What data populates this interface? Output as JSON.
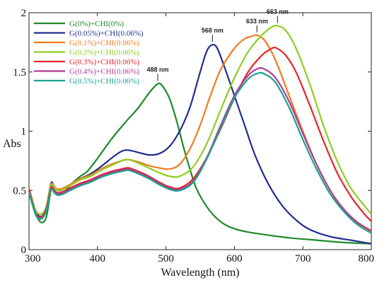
{
  "chart_data": {
    "type": "line",
    "title": "",
    "xlabel": "Wavelength (nm)",
    "ylabel": "Abs",
    "xlim": [
      300,
      800
    ],
    "ylim": [
      0,
      2
    ],
    "x_ticks": [
      "300",
      "400",
      "500",
      "600",
      "700",
      "800"
    ],
    "y_ticks": [
      "0",
      "0.5",
      "1",
      "1.5",
      "2"
    ],
    "grid": false,
    "legend": "top-left",
    "series": [
      {
        "name": "G(0%)+CHI(0%)",
        "color": "#1e8a2a",
        "points": [
          [
            300,
            0.5
          ],
          [
            310,
            0.3
          ],
          [
            318,
            0.23
          ],
          [
            325,
            0.27
          ],
          [
            330,
            0.43
          ],
          [
            333,
            0.54
          ],
          [
            337,
            0.5
          ],
          [
            342,
            0.46
          ],
          [
            348,
            0.47
          ],
          [
            355,
            0.51
          ],
          [
            365,
            0.57
          ],
          [
            375,
            0.62
          ],
          [
            385,
            0.66
          ],
          [
            400,
            0.77
          ],
          [
            420,
            0.93
          ],
          [
            440,
            1.07
          ],
          [
            460,
            1.2
          ],
          [
            475,
            1.32
          ],
          [
            488,
            1.4
          ],
          [
            495,
            1.38
          ],
          [
            505,
            1.28
          ],
          [
            515,
            1.1
          ],
          [
            525,
            0.88
          ],
          [
            535,
            0.68
          ],
          [
            545,
            0.51
          ],
          [
            560,
            0.36
          ],
          [
            575,
            0.26
          ],
          [
            590,
            0.2
          ],
          [
            610,
            0.16
          ],
          [
            640,
            0.13
          ],
          [
            680,
            0.1
          ],
          [
            720,
            0.08
          ],
          [
            760,
            0.06
          ],
          [
            800,
            0.05
          ]
        ]
      },
      {
        "name": "G(0.05%)+CHI(0.06%)",
        "color": "#1f2d8f",
        "points": [
          [
            300,
            0.52
          ],
          [
            310,
            0.32
          ],
          [
            318,
            0.28
          ],
          [
            325,
            0.34
          ],
          [
            330,
            0.5
          ],
          [
            333,
            0.57
          ],
          [
            337,
            0.53
          ],
          [
            342,
            0.5
          ],
          [
            350,
            0.51
          ],
          [
            360,
            0.55
          ],
          [
            375,
            0.6
          ],
          [
            390,
            0.64
          ],
          [
            405,
            0.7
          ],
          [
            420,
            0.77
          ],
          [
            435,
            0.83
          ],
          [
            445,
            0.84
          ],
          [
            460,
            0.82
          ],
          [
            475,
            0.8
          ],
          [
            490,
            0.81
          ],
          [
            505,
            0.87
          ],
          [
            520,
            1.0
          ],
          [
            535,
            1.2
          ],
          [
            550,
            1.5
          ],
          [
            560,
            1.68
          ],
          [
            568,
            1.73
          ],
          [
            575,
            1.7
          ],
          [
            585,
            1.55
          ],
          [
            600,
            1.3
          ],
          [
            615,
            1.05
          ],
          [
            630,
            0.8
          ],
          [
            650,
            0.55
          ],
          [
            670,
            0.37
          ],
          [
            690,
            0.25
          ],
          [
            710,
            0.17
          ],
          [
            740,
            0.11
          ],
          [
            770,
            0.08
          ],
          [
            800,
            0.05
          ]
        ]
      },
      {
        "name": "G(0.1%)+CHI(0.06%)",
        "color": "#f07b1f",
        "points": [
          [
            300,
            0.52
          ],
          [
            310,
            0.33
          ],
          [
            318,
            0.3
          ],
          [
            325,
            0.36
          ],
          [
            330,
            0.5
          ],
          [
            333,
            0.56
          ],
          [
            337,
            0.53
          ],
          [
            342,
            0.51
          ],
          [
            350,
            0.52
          ],
          [
            360,
            0.55
          ],
          [
            375,
            0.6
          ],
          [
            390,
            0.63
          ],
          [
            405,
            0.68
          ],
          [
            420,
            0.72
          ],
          [
            435,
            0.75
          ],
          [
            445,
            0.76
          ],
          [
            460,
            0.74
          ],
          [
            475,
            0.71
          ],
          [
            490,
            0.69
          ],
          [
            505,
            0.68
          ],
          [
            520,
            0.72
          ],
          [
            535,
            0.85
          ],
          [
            550,
            1.05
          ],
          [
            565,
            1.3
          ],
          [
            580,
            1.52
          ],
          [
            600,
            1.7
          ],
          [
            615,
            1.78
          ],
          [
            625,
            1.8
          ],
          [
            633,
            1.81
          ],
          [
            645,
            1.76
          ],
          [
            660,
            1.6
          ],
          [
            680,
            1.3
          ],
          [
            700,
            1.0
          ],
          [
            720,
            0.72
          ],
          [
            740,
            0.5
          ],
          [
            760,
            0.33
          ],
          [
            780,
            0.22
          ],
          [
            800,
            0.15
          ]
        ]
      },
      {
        "name": "G(0.2%)+CHI(0.06%)",
        "color": "#8ccf1f",
        "points": [
          [
            300,
            0.5
          ],
          [
            310,
            0.33
          ],
          [
            318,
            0.3
          ],
          [
            325,
            0.35
          ],
          [
            330,
            0.49
          ],
          [
            333,
            0.55
          ],
          [
            337,
            0.52
          ],
          [
            342,
            0.5
          ],
          [
            350,
            0.51
          ],
          [
            360,
            0.54
          ],
          [
            375,
            0.59
          ],
          [
            390,
            0.62
          ],
          [
            405,
            0.67
          ],
          [
            420,
            0.71
          ],
          [
            435,
            0.75
          ],
          [
            445,
            0.76
          ],
          [
            460,
            0.73
          ],
          [
            475,
            0.69
          ],
          [
            490,
            0.65
          ],
          [
            505,
            0.62
          ],
          [
            520,
            0.62
          ],
          [
            540,
            0.7
          ],
          [
            560,
            0.9
          ],
          [
            580,
            1.18
          ],
          [
            600,
            1.45
          ],
          [
            620,
            1.67
          ],
          [
            640,
            1.81
          ],
          [
            655,
            1.88
          ],
          [
            663,
            1.89
          ],
          [
            675,
            1.85
          ],
          [
            690,
            1.7
          ],
          [
            710,
            1.4
          ],
          [
            730,
            1.05
          ],
          [
            750,
            0.75
          ],
          [
            770,
            0.52
          ],
          [
            790,
            0.37
          ],
          [
            800,
            0.3
          ]
        ]
      },
      {
        "name": "G(0.3%)+CHI(0.06%)",
        "color": "#e8232a",
        "points": [
          [
            300,
            0.5
          ],
          [
            310,
            0.3
          ],
          [
            318,
            0.28
          ],
          [
            325,
            0.34
          ],
          [
            330,
            0.47
          ],
          [
            333,
            0.53
          ],
          [
            337,
            0.5
          ],
          [
            342,
            0.48
          ],
          [
            350,
            0.49
          ],
          [
            360,
            0.52
          ],
          [
            375,
            0.56
          ],
          [
            390,
            0.59
          ],
          [
            405,
            0.63
          ],
          [
            420,
            0.66
          ],
          [
            435,
            0.68
          ],
          [
            445,
            0.69
          ],
          [
            460,
            0.66
          ],
          [
            475,
            0.62
          ],
          [
            490,
            0.57
          ],
          [
            505,
            0.53
          ],
          [
            520,
            0.52
          ],
          [
            540,
            0.6
          ],
          [
            560,
            0.78
          ],
          [
            580,
            1.02
          ],
          [
            600,
            1.28
          ],
          [
            620,
            1.5
          ],
          [
            640,
            1.64
          ],
          [
            655,
            1.7
          ],
          [
            662,
            1.7
          ],
          [
            675,
            1.64
          ],
          [
            690,
            1.5
          ],
          [
            710,
            1.22
          ],
          [
            730,
            0.92
          ],
          [
            750,
            0.65
          ],
          [
            770,
            0.45
          ],
          [
            790,
            0.3
          ],
          [
            800,
            0.24
          ]
        ]
      },
      {
        "name": "G(0.4%)+CHI(0.06%)",
        "color": "#b03a9a",
        "points": [
          [
            300,
            0.5
          ],
          [
            310,
            0.3
          ],
          [
            318,
            0.27
          ],
          [
            325,
            0.33
          ],
          [
            330,
            0.46
          ],
          [
            333,
            0.52
          ],
          [
            337,
            0.49
          ],
          [
            342,
            0.47
          ],
          [
            350,
            0.48
          ],
          [
            360,
            0.51
          ],
          [
            375,
            0.55
          ],
          [
            390,
            0.58
          ],
          [
            405,
            0.62
          ],
          [
            420,
            0.65
          ],
          [
            435,
            0.67
          ],
          [
            445,
            0.68
          ],
          [
            460,
            0.65
          ],
          [
            475,
            0.61
          ],
          [
            490,
            0.56
          ],
          [
            505,
            0.52
          ],
          [
            520,
            0.51
          ],
          [
            540,
            0.58
          ],
          [
            560,
            0.78
          ],
          [
            580,
            1.05
          ],
          [
            600,
            1.3
          ],
          [
            620,
            1.47
          ],
          [
            635,
            1.53
          ],
          [
            645,
            1.52
          ],
          [
            660,
            1.45
          ],
          [
            680,
            1.25
          ],
          [
            700,
            0.98
          ],
          [
            720,
            0.72
          ],
          [
            740,
            0.5
          ],
          [
            760,
            0.34
          ],
          [
            780,
            0.23
          ],
          [
            800,
            0.16
          ]
        ]
      },
      {
        "name": "G(0.5%)+CHI(0.06%)",
        "color": "#1aa38a",
        "points": [
          [
            300,
            0.48
          ],
          [
            310,
            0.29
          ],
          [
            318,
            0.26
          ],
          [
            325,
            0.32
          ],
          [
            330,
            0.45
          ],
          [
            333,
            0.51
          ],
          [
            337,
            0.48
          ],
          [
            342,
            0.46
          ],
          [
            350,
            0.47
          ],
          [
            360,
            0.5
          ],
          [
            375,
            0.54
          ],
          [
            390,
            0.57
          ],
          [
            405,
            0.61
          ],
          [
            420,
            0.64
          ],
          [
            435,
            0.66
          ],
          [
            445,
            0.67
          ],
          [
            460,
            0.64
          ],
          [
            475,
            0.6
          ],
          [
            490,
            0.55
          ],
          [
            505,
            0.51
          ],
          [
            520,
            0.5
          ],
          [
            540,
            0.57
          ],
          [
            560,
            0.77
          ],
          [
            580,
            1.03
          ],
          [
            600,
            1.28
          ],
          [
            620,
            1.44
          ],
          [
            635,
            1.49
          ],
          [
            645,
            1.48
          ],
          [
            660,
            1.41
          ],
          [
            680,
            1.2
          ],
          [
            700,
            0.93
          ],
          [
            720,
            0.68
          ],
          [
            740,
            0.47
          ],
          [
            760,
            0.32
          ],
          [
            780,
            0.21
          ],
          [
            800,
            0.14
          ]
        ]
      }
    ],
    "annotations": [
      {
        "text": "488 nm",
        "x": 488,
        "y": 1.4
      },
      {
        "text": "568 nm",
        "x": 568,
        "y": 1.73
      },
      {
        "text": "633 nm",
        "x": 633,
        "y": 1.81
      },
      {
        "text": "663 nm",
        "x": 663,
        "y": 1.89
      }
    ]
  }
}
